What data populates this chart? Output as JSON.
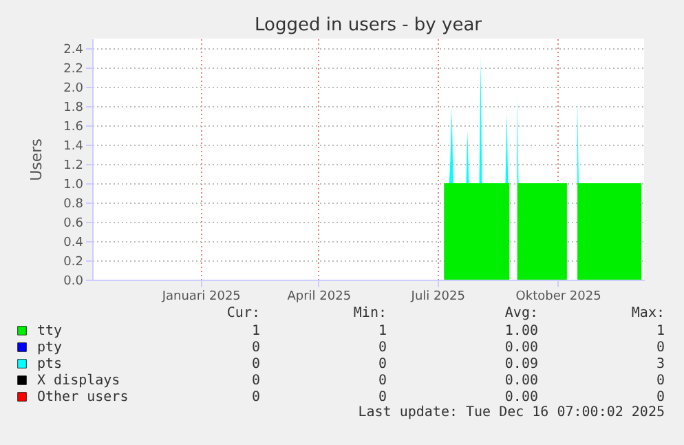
{
  "chart_data": {
    "type": "area",
    "stacked": true,
    "title": "Logged in users - by year",
    "ylabel": "Users",
    "x": [
      "2025-07-06",
      "2025-07-10",
      "2025-07-11",
      "2025-07-12",
      "2025-07-13",
      "2025-07-23",
      "2025-07-24",
      "2025-07-25",
      "2025-08-02",
      "2025-08-03",
      "2025-08-04",
      "2025-08-22",
      "2025-08-23",
      "2025-08-24",
      "2025-08-25",
      "2025-08-28",
      "2025-08-31",
      "2025-09-01",
      "2025-10-08",
      "2025-10-12",
      "2025-10-16",
      "2025-10-17",
      "2025-12-04"
    ],
    "series": [
      {
        "name": "tty",
        "color": "#00ee00",
        "values": [
          1,
          1,
          1,
          1,
          1,
          1,
          1,
          1,
          1,
          1,
          1,
          1,
          1,
          1,
          1,
          null,
          1,
          1,
          1,
          null,
          1,
          1,
          1
        ]
      },
      {
        "name": "pty",
        "color": "#0000ff",
        "values": [
          null,
          null,
          null,
          null,
          null,
          null,
          null,
          null,
          null,
          null,
          null,
          null,
          null,
          null,
          null,
          null,
          null,
          null,
          null,
          null,
          null,
          null,
          null
        ]
      },
      {
        "name": "pts",
        "color": "#00ffff",
        "values": [
          0,
          0,
          0.3,
          0.78,
          0,
          0,
          0.54,
          0,
          0,
          1.3,
          0,
          0,
          0.73,
          0,
          0,
          null,
          0.9,
          0,
          0,
          null,
          0.86,
          0,
          0
        ]
      },
      {
        "name": "X displays",
        "color": "#000000",
        "values": [
          null,
          null,
          null,
          null,
          null,
          null,
          null,
          null,
          null,
          null,
          null,
          null,
          null,
          null,
          null,
          null,
          null,
          null,
          null,
          null,
          null,
          null,
          null
        ]
      },
      {
        "name": "Other users",
        "color": "#ff0000",
        "values": [
          null,
          null,
          null,
          null,
          null,
          null,
          null,
          null,
          null,
          null,
          null,
          null,
          null,
          null,
          null,
          null,
          null,
          null,
          null,
          null,
          null,
          null,
          null
        ]
      }
    ],
    "xlim": [
      "2024-10-10",
      "2025-12-06"
    ],
    "xticks": [
      {
        "value": "2025-01-01",
        "label": "Januari 2025"
      },
      {
        "value": "2025-04-01",
        "label": "April 2025"
      },
      {
        "value": "2025-07-01",
        "label": "Juli 2025"
      },
      {
        "value": "2025-10-01",
        "label": "Oktober 2025"
      }
    ],
    "ylim": [
      0,
      2.5
    ],
    "yticks": [
      {
        "value": 0,
        "label": "0.0"
      },
      {
        "value": 0.2,
        "label": "0.2"
      },
      {
        "value": 0.4,
        "label": "0.4"
      },
      {
        "value": 0.6,
        "label": "0.6"
      },
      {
        "value": 0.8,
        "label": "0.8"
      },
      {
        "value": 1,
        "label": "1.0"
      },
      {
        "value": 1.2,
        "label": "1.2"
      },
      {
        "value": 1.4,
        "label": "1.4"
      },
      {
        "value": 1.6,
        "label": "1.6"
      },
      {
        "value": 1.8,
        "label": "1.8"
      },
      {
        "value": 2,
        "label": "2.0"
      },
      {
        "value": 2.2,
        "label": "2.2"
      },
      {
        "value": 2.4,
        "label": "2.4"
      }
    ],
    "grid": true,
    "legend": "bottom",
    "annotations": [
      "Cur:",
      "Min:",
      "Avg:",
      "Max:",
      "1",
      "1",
      "1.00",
      "1",
      "0",
      "0",
      "0.00",
      "0",
      "0",
      "0",
      "0.09",
      "3",
      "0",
      "0",
      "0.00",
      "0",
      "0",
      "0",
      "0.00",
      "0",
      "Last update: Tue Dec 16 07:00:02 2025"
    ]
  }
}
